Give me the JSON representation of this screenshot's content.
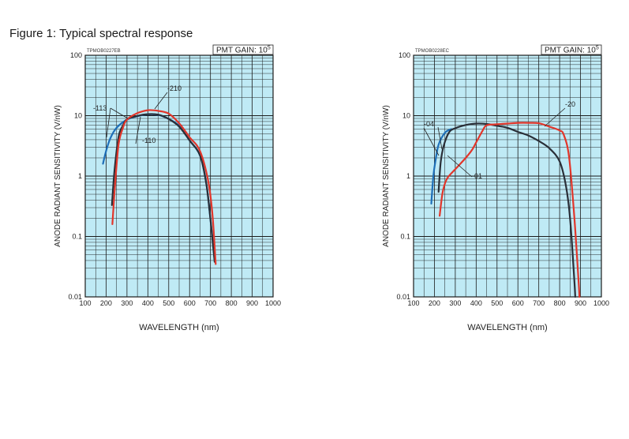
{
  "figure": {
    "title": "Figure 1: Typical spectral response"
  },
  "chart_data": [
    {
      "type": "line",
      "code": "TPMOB0227EB",
      "gain_label": "PMT GAIN: 10",
      "gain_exponent": "5",
      "xlabel": "WAVELENGTH (nm)",
      "ylabel": "ANODE RADIANT SENSITIVITY (V/nW)",
      "xlim": [
        100,
        1000
      ],
      "ylim": [
        0.01,
        100
      ],
      "yscale": "log",
      "grid": true,
      "plot_background": "#bfeaf5",
      "xticks": [
        "100",
        "200",
        "300",
        "400",
        "500",
        "600",
        "700",
        "800",
        "900",
        "1000"
      ],
      "yticks": [
        {
          "v": 100,
          "label": "100"
        },
        {
          "v": 10,
          "label": "10"
        },
        {
          "v": 1,
          "label": "1"
        },
        {
          "v": 0.1,
          "label": "0.1"
        },
        {
          "v": 0.01,
          "label": "0.01"
        }
      ],
      "series": [
        {
          "name": "-113",
          "color": "#1e6fb8",
          "points": [
            [
              185,
              1.6
            ],
            [
              200,
              2.6
            ],
            [
              220,
              4.2
            ],
            [
              250,
              6.3
            ],
            [
              300,
              8.6
            ],
            [
              350,
              9.8
            ],
            [
              400,
              10.5
            ],
            [
              450,
              10.3
            ],
            [
              500,
              8.8
            ],
            [
              550,
              6.8
            ],
            [
              600,
              3.9
            ],
            [
              650,
              2.2
            ],
            [
              680,
              0.75
            ],
            [
              700,
              0.19
            ],
            [
              720,
              0.04
            ]
          ]
        },
        {
          "name": "-110",
          "color": "#2a2f38",
          "points": [
            [
              228,
              0.33
            ],
            [
              240,
              1.2
            ],
            [
              260,
              4.5
            ],
            [
              280,
              6.8
            ],
            [
              300,
              8.7
            ],
            [
              350,
              9.9
            ],
            [
              400,
              10.6
            ],
            [
              450,
              10.4
            ],
            [
              500,
              8.8
            ],
            [
              550,
              6.6
            ],
            [
              600,
              3.9
            ],
            [
              650,
              2.2
            ],
            [
              680,
              0.75
            ],
            [
              700,
              0.19
            ],
            [
              720,
              0.038
            ]
          ]
        },
        {
          "name": "-210",
          "color": "#e2362b",
          "points": [
            [
              230,
              0.16
            ],
            [
              245,
              0.9
            ],
            [
              260,
              3.4
            ],
            [
              280,
              6.2
            ],
            [
              300,
              8.6
            ],
            [
              350,
              11.0
            ],
            [
              400,
              12.3
            ],
            [
              450,
              12.0
            ],
            [
              500,
              10.8
            ],
            [
              550,
              7.5
            ],
            [
              600,
              4.4
            ],
            [
              650,
              2.6
            ],
            [
              690,
              0.8
            ],
            [
              710,
              0.22
            ],
            [
              725,
              0.035
            ]
          ]
        }
      ],
      "annotations": [
        "-113",
        "-210",
        "-110"
      ]
    },
    {
      "type": "line",
      "code": "TPMOB0228EC",
      "gain_label": "PMT GAIN: 10",
      "gain_exponent": "5",
      "xlabel": "WAVELENGTH (nm)",
      "ylabel": "ANODE RADIANT SENSITIVITY (V/nW)",
      "xlim": [
        100,
        1000
      ],
      "ylim": [
        0.01,
        100
      ],
      "yscale": "log",
      "grid": true,
      "plot_background": "#bfeaf5",
      "xticks": [
        "100",
        "200",
        "300",
        "400",
        "500",
        "600",
        "700",
        "800",
        "900",
        "1000"
      ],
      "yticks": [
        {
          "v": 100,
          "label": "100"
        },
        {
          "v": 10,
          "label": "10"
        },
        {
          "v": 1,
          "label": "1"
        },
        {
          "v": 0.1,
          "label": "0.1"
        },
        {
          "v": 0.01,
          "label": "0.01"
        }
      ],
      "series": [
        {
          "name": "-04",
          "color": "#1e6fb8",
          "points": [
            [
              185,
              0.35
            ],
            [
              195,
              1.0
            ],
            [
              205,
              1.8
            ],
            [
              220,
              3.3
            ],
            [
              250,
              5.2
            ],
            [
              280,
              6.0
            ]
          ]
        },
        {
          "name": "-01",
          "color": "#2a2f38",
          "points": [
            [
              220,
              0.55
            ],
            [
              230,
              1.7
            ],
            [
              245,
              3.2
            ],
            [
              270,
              5.3
            ],
            [
              300,
              6.2
            ],
            [
              350,
              7.0
            ],
            [
              400,
              7.4
            ],
            [
              450,
              7.3
            ],
            [
              500,
              6.8
            ],
            [
              550,
              6.3
            ],
            [
              600,
              5.4
            ],
            [
              650,
              4.7
            ],
            [
              700,
              3.8
            ],
            [
              750,
              2.9
            ],
            [
              800,
              1.75
            ],
            [
              830,
              0.7
            ],
            [
              850,
              0.2
            ],
            [
              870,
              0.02
            ],
            [
              875,
              0.01
            ]
          ]
        },
        {
          "name": "-20",
          "color": "#e2362b",
          "points": [
            [
              225,
              0.22
            ],
            [
              240,
              0.55
            ],
            [
              260,
              0.9
            ],
            [
              300,
              1.3
            ],
            [
              350,
              2.0
            ],
            [
              380,
              2.7
            ],
            [
              400,
              3.6
            ],
            [
              430,
              5.6
            ],
            [
              450,
              6.9
            ],
            [
              500,
              7.2
            ],
            [
              550,
              7.4
            ],
            [
              600,
              7.6
            ],
            [
              650,
              7.6
            ],
            [
              700,
              7.5
            ],
            [
              750,
              6.6
            ],
            [
              800,
              5.7
            ],
            [
              820,
              4.8
            ],
            [
              845,
              2.1
            ],
            [
              870,
              0.22
            ],
            [
              890,
              0.02
            ],
            [
              895,
              0.01
            ]
          ]
        }
      ],
      "annotations": [
        "-04",
        "-20",
        "-01"
      ]
    }
  ]
}
